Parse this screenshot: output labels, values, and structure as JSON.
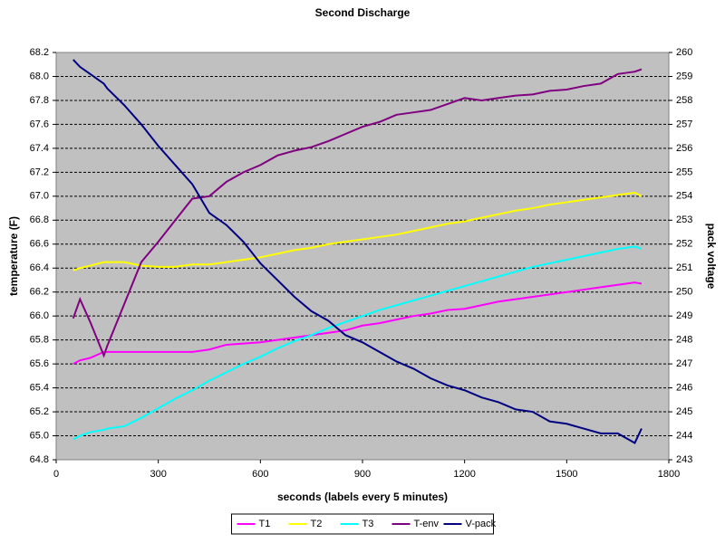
{
  "chart_data": {
    "type": "line",
    "title": "Second Discharge",
    "xlabel": "seconds (labels every 5 minutes)",
    "ylabel": "temperature (F)",
    "y2label": "pack voltage",
    "x": [
      50,
      70,
      100,
      140,
      150,
      200,
      250,
      300,
      350,
      400,
      450,
      500,
      550,
      600,
      650,
      700,
      750,
      800,
      850,
      900,
      950,
      1000,
      1050,
      1100,
      1150,
      1200,
      1250,
      1300,
      1350,
      1400,
      1450,
      1500,
      1550,
      1600,
      1650,
      1700,
      1720
    ],
    "xlim": [
      0,
      1800
    ],
    "xticks": [
      0,
      300,
      600,
      900,
      1200,
      1500,
      1800
    ],
    "ylim": [
      64.8,
      68.2
    ],
    "yticks": [
      64.8,
      {
        "value": 65.0,
        "label": "65.0"
      },
      65.2,
      65.4,
      65.6,
      65.8,
      {
        "value": 66.0,
        "label": "66.0"
      },
      66.2,
      66.4,
      66.6,
      66.8,
      {
        "value": 67.0,
        "label": "67.0"
      },
      67.2,
      67.4,
      67.6,
      67.8,
      {
        "value": 68.0,
        "label": "68.0"
      },
      68.2
    ],
    "y2lim": [
      243,
      260
    ],
    "y2ticks": [
      243,
      244,
      245,
      246,
      247,
      248,
      249,
      250,
      251,
      252,
      253,
      254,
      255,
      256,
      257,
      258,
      259,
      260
    ],
    "grid": true,
    "legend": "bottom",
    "series": [
      {
        "name": "T1",
        "color": "#ff00ff",
        "values": [
          65.6,
          65.63,
          65.65,
          65.7,
          65.7,
          65.7,
          65.7,
          65.7,
          65.7,
          65.7,
          65.72,
          65.76,
          65.77,
          65.78,
          65.8,
          65.82,
          65.84,
          65.86,
          65.88,
          65.92,
          65.94,
          65.97,
          66.0,
          66.02,
          66.05,
          66.06,
          66.09,
          66.12,
          66.14,
          66.16,
          66.18,
          66.2,
          66.22,
          66.24,
          66.26,
          66.28,
          66.27
        ]
      },
      {
        "name": "T2",
        "color": "#ffff00",
        "values": [
          66.38,
          66.4,
          66.42,
          66.45,
          66.45,
          66.45,
          66.42,
          66.41,
          66.41,
          66.43,
          66.43,
          66.45,
          66.47,
          66.49,
          66.52,
          66.55,
          66.57,
          66.6,
          66.62,
          66.64,
          66.66,
          66.68,
          66.71,
          66.74,
          66.77,
          66.79,
          66.82,
          66.85,
          66.88,
          66.9,
          66.93,
          66.95,
          66.97,
          66.99,
          67.01,
          67.03,
          67.0
        ]
      },
      {
        "name": "T3",
        "color": "#00ffff",
        "values": [
          64.97,
          65.0,
          65.03,
          65.05,
          65.06,
          65.08,
          65.15,
          65.23,
          65.31,
          65.38,
          65.46,
          65.53,
          65.6,
          65.66,
          65.73,
          65.79,
          65.84,
          65.9,
          65.95,
          66.0,
          66.05,
          66.09,
          66.13,
          66.17,
          66.21,
          66.25,
          66.29,
          66.33,
          66.37,
          66.41,
          66.44,
          66.47,
          66.5,
          66.53,
          66.56,
          66.58,
          66.56
        ]
      },
      {
        "name": "T-env",
        "color": "#800080",
        "values": [
          65.98,
          66.14,
          65.95,
          65.67,
          65.75,
          66.1,
          66.45,
          66.62,
          66.8,
          66.98,
          67.0,
          67.12,
          67.2,
          67.26,
          67.34,
          67.38,
          67.41,
          67.46,
          67.52,
          67.58,
          67.62,
          67.68,
          67.7,
          67.72,
          67.77,
          67.82,
          67.8,
          67.82,
          67.84,
          67.85,
          67.88,
          67.89,
          67.92,
          67.94,
          68.02,
          68.04,
          68.06
        ]
      },
      {
        "name": "V-pack",
        "color": "#000080",
        "axis": "y2",
        "values": [
          259.7,
          259.4,
          259.1,
          258.7,
          258.5,
          257.8,
          257.0,
          256.1,
          255.3,
          254.5,
          253.3,
          252.8,
          252.1,
          251.2,
          250.5,
          249.8,
          249.2,
          248.8,
          248.2,
          247.9,
          247.5,
          247.1,
          246.8,
          246.4,
          246.1,
          245.9,
          245.6,
          245.4,
          245.1,
          245.0,
          244.6,
          244.5,
          244.3,
          244.1,
          244.1,
          243.7,
          244.3
        ]
      }
    ]
  }
}
